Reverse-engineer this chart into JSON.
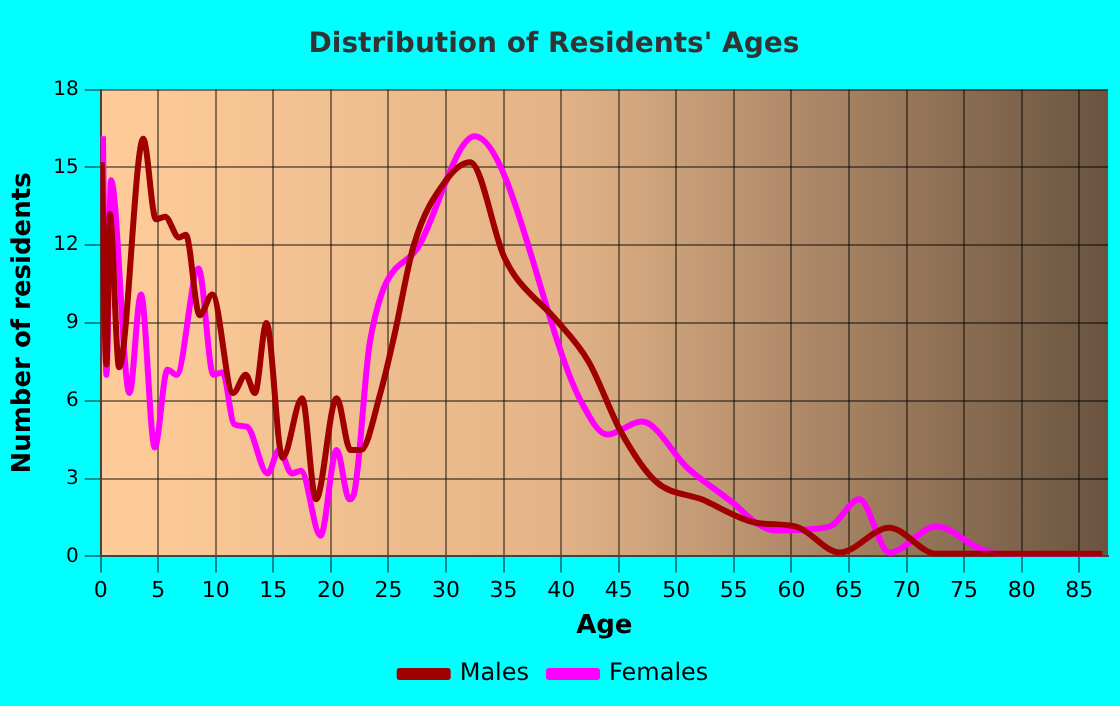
{
  "chart_data": {
    "type": "line",
    "title": "Distribution of Residents' Ages",
    "xlabel": "Age",
    "ylabel": "Number of residents",
    "xlim": [
      0,
      87.5
    ],
    "xticks": [
      0,
      5,
      10,
      15,
      20,
      25,
      30,
      35,
      40,
      45,
      50,
      55,
      60,
      65,
      70,
      75,
      80,
      85
    ],
    "ylim": [
      0,
      18
    ],
    "yticks": [
      0,
      3,
      6,
      9,
      12,
      15,
      18
    ],
    "grid": true,
    "legend": "bottom",
    "marker": "none",
    "series": [
      {
        "name": "Males",
        "color": "#a00000",
        "x": [
          0.1,
          0.5,
          0.8,
          1.6,
          3.7,
          4.8,
          5.6,
          6.8,
          7.4,
          8.6,
          9.7,
          11.5,
          12.6,
          13.4,
          14.4,
          15.8,
          17.5,
          18.7,
          20.5,
          21.7,
          22.6,
          24.3,
          25.5,
          27.2,
          30,
          32.1,
          35,
          36,
          39.4,
          42.4,
          45.2,
          48.2,
          52.2,
          56.9,
          60.4,
          64.2,
          68.5,
          72.6,
          80,
          87
        ],
        "values": [
          15.2,
          7.4,
          13.2,
          7.3,
          16.1,
          13,
          13.1,
          12.3,
          12.4,
          9.3,
          10.1,
          6.3,
          7,
          6.3,
          9,
          3.8,
          6.1,
          2.2,
          6.1,
          4.1,
          4.1,
          6.3,
          8.5,
          12,
          14.5,
          15.2,
          11.6,
          10.8,
          9.2,
          7.5,
          4.8,
          2.9,
          2.2,
          1.3,
          1.15,
          0.15,
          1.1,
          0.1,
          0.1,
          0.1
        ]
      },
      {
        "name": "Females",
        "color": "#ff00ff",
        "x": [
          0.2,
          0.5,
          0.9,
          2.5,
          3.5,
          4.7,
          5.8,
          6.6,
          8.5,
          9.8,
          10.6,
          11.6,
          12.7,
          14.5,
          15.5,
          16.6,
          17.4,
          19.1,
          20.5,
          21.6,
          22,
          23.4,
          27.8,
          32.5,
          41.7,
          44,
          47,
          51,
          55.1,
          56.9,
          58.6,
          63.3,
          65.9,
          68.5,
          72.6,
          76.6,
          80,
          87
        ],
        "values": [
          16.2,
          7,
          14.5,
          6.3,
          10.1,
          4.2,
          7.2,
          7,
          11.1,
          7,
          7.1,
          5.1,
          5,
          3.2,
          4.1,
          3.2,
          3.3,
          0.8,
          4.1,
          2.2,
          2.4,
          8.3,
          12.1,
          16.2,
          6,
          4.7,
          5.2,
          3.4,
          2,
          1.3,
          1,
          1.15,
          2.2,
          0.15,
          1.15,
          0.25,
          0,
          0
        ]
      }
    ]
  }
}
